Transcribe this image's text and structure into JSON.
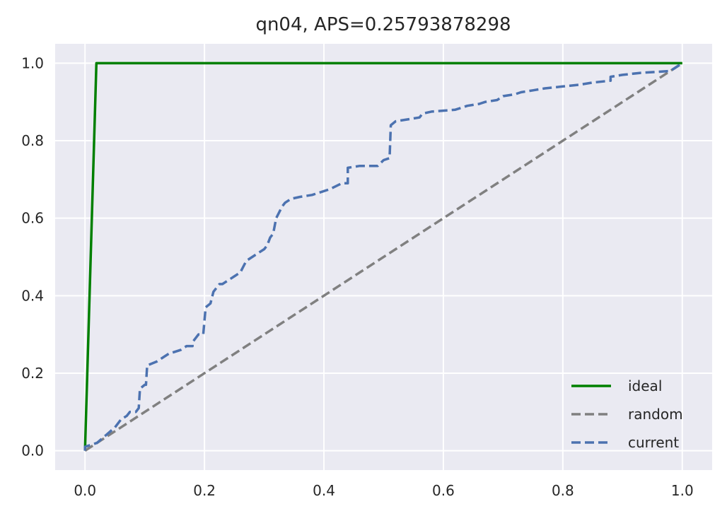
{
  "chart_data": {
    "type": "line",
    "title": "qn04, APS=0.25793878298",
    "xlabel": "",
    "ylabel": "",
    "xlim": [
      -0.05,
      1.05
    ],
    "ylim": [
      -0.05,
      1.05
    ],
    "xticks": [
      "0.0",
      "0.2",
      "0.4",
      "0.6",
      "0.8",
      "1.0"
    ],
    "yticks": [
      "0.0",
      "0.2",
      "0.4",
      "0.6",
      "0.8",
      "1.0"
    ],
    "grid": true,
    "legend_position": "lower-right",
    "series": [
      {
        "name": "ideal",
        "style": "solid",
        "color": "#008000",
        "x": [
          0.0,
          0.019,
          1.0
        ],
        "y": [
          0.0,
          1.0,
          1.0
        ]
      },
      {
        "name": "random",
        "style": "dashed",
        "color": "#808080",
        "x": [
          0.0,
          1.0
        ],
        "y": [
          0.0,
          1.0
        ]
      },
      {
        "name": "current",
        "style": "dashed",
        "color": "#4c72b0",
        "x": [
          0.0,
          0.0,
          0.02,
          0.035,
          0.05,
          0.06,
          0.07,
          0.075,
          0.085,
          0.09,
          0.092,
          0.1,
          0.102,
          0.104,
          0.12,
          0.13,
          0.14,
          0.16,
          0.17,
          0.18,
          0.18,
          0.19,
          0.198,
          0.202,
          0.21,
          0.215,
          0.225,
          0.23,
          0.24,
          0.25,
          0.26,
          0.27,
          0.28,
          0.29,
          0.3,
          0.305,
          0.31,
          0.315,
          0.32,
          0.33,
          0.335,
          0.345,
          0.36,
          0.38,
          0.39,
          0.41,
          0.43,
          0.44,
          0.44,
          0.46,
          0.49,
          0.5,
          0.51,
          0.512,
          0.52,
          0.56,
          0.565,
          0.58,
          0.62,
          0.63,
          0.64,
          0.66,
          0.67,
          0.69,
          0.7,
          0.72,
          0.73,
          0.75,
          0.77,
          0.8,
          0.83,
          0.85,
          0.88,
          0.88,
          0.9,
          0.93,
          0.98,
          0.99,
          1.0
        ],
        "y": [
          0.0,
          0.01,
          0.02,
          0.04,
          0.06,
          0.08,
          0.09,
          0.1,
          0.1,
          0.11,
          0.16,
          0.17,
          0.17,
          0.22,
          0.23,
          0.24,
          0.25,
          0.26,
          0.27,
          0.27,
          0.28,
          0.3,
          0.3,
          0.37,
          0.38,
          0.41,
          0.43,
          0.43,
          0.44,
          0.45,
          0.46,
          0.49,
          0.5,
          0.51,
          0.52,
          0.53,
          0.55,
          0.56,
          0.6,
          0.63,
          0.64,
          0.65,
          0.655,
          0.66,
          0.665,
          0.675,
          0.69,
          0.69,
          0.73,
          0.735,
          0.735,
          0.75,
          0.755,
          0.84,
          0.85,
          0.86,
          0.87,
          0.875,
          0.88,
          0.885,
          0.89,
          0.895,
          0.9,
          0.905,
          0.915,
          0.92,
          0.925,
          0.93,
          0.935,
          0.94,
          0.945,
          0.95,
          0.955,
          0.965,
          0.97,
          0.975,
          0.98,
          0.99,
          1.0
        ]
      }
    ]
  }
}
